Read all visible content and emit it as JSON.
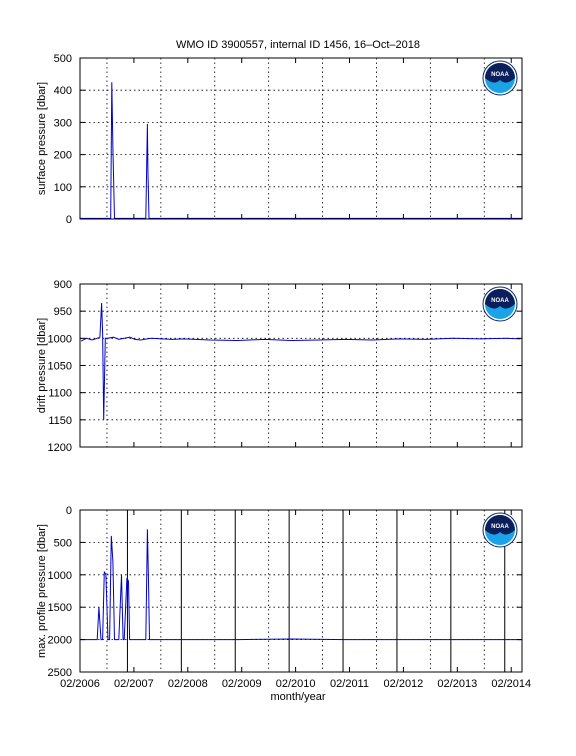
{
  "figure": {
    "title": "WMO ID 3900557, internal ID 1456, 16–Oct–2018",
    "xlabel": "month/year"
  },
  "colors": {
    "series": "#0000cc",
    "axes": "#000000",
    "grid": "#000000"
  },
  "logo": {
    "icon": "noaa-logo-icon",
    "text": "NOAA"
  },
  "chart_data": [
    {
      "type": "line",
      "ylabel": "surface pressure [dbar]",
      "ylim": [
        0,
        500
      ],
      "yticks": [
        0,
        100,
        200,
        300,
        400,
        500
      ],
      "yreversed": false,
      "xlim": [
        2006.08,
        2014.28
      ],
      "grid": true,
      "legend": "none",
      "series": [
        {
          "x": [
            2006.08,
            2006.6,
            2006.65,
            2006.67,
            2006.69,
            2006.72,
            2006.74,
            2007.2,
            2007.3,
            2007.33,
            2007.34,
            2007.36,
            2007.38,
            2014.28
          ],
          "y": [
            2,
            2,
            2,
            425,
            220,
            2,
            2,
            2,
            2,
            295,
            155,
            2,
            2,
            2
          ]
        }
      ]
    },
    {
      "type": "line",
      "ylabel": "drift pressure [dbar]",
      "ylim": [
        900,
        1200
      ],
      "yticks": [
        900,
        950,
        1000,
        1050,
        1100,
        1150,
        1200
      ],
      "yreversed": true,
      "xlim": [
        2006.08,
        2014.28
      ],
      "grid": true,
      "legend": "none",
      "series": [
        {
          "x": [
            2006.1,
            2006.2,
            2006.3,
            2006.4,
            2006.45,
            2006.48,
            2006.5,
            2006.52,
            2006.55,
            2006.6,
            2006.7,
            2006.8,
            2006.9,
            2007.0,
            2007.1,
            2007.2,
            2007.4,
            2007.6,
            2007.8,
            2008.0,
            2008.5,
            2009.0,
            2009.5,
            2010.0,
            2010.5,
            2011.0,
            2011.5,
            2012.0,
            2012.5,
            2013.0,
            2013.5,
            2014.0,
            2014.25
          ],
          "y": [
            1005,
            1000,
            1003,
            1000,
            998,
            935,
            990,
            1150,
            1000,
            1000,
            998,
            1002,
            1000,
            998,
            1002,
            1003,
            1000,
            1001,
            1002,
            1001,
            1003,
            1004,
            1002,
            1004,
            1003,
            1002,
            1003,
            1001,
            1002,
            1000,
            1001,
            1000,
            1001
          ]
        }
      ]
    },
    {
      "type": "line",
      "ylabel": "max. profile pressure [dbar]",
      "ylim": [
        0,
        2500
      ],
      "yticks": [
        0,
        500,
        1000,
        1500,
        2000,
        2500
      ],
      "yreversed": true,
      "xlim": [
        2006.08,
        2014.28
      ],
      "grid": true,
      "legend": "none",
      "series": [
        {
          "x": [
            2006.08,
            2006.4,
            2006.43,
            2006.47,
            2006.5,
            2006.53,
            2006.56,
            2006.6,
            2006.63,
            2006.66,
            2006.69,
            2006.72,
            2006.8,
            2006.85,
            2006.88,
            2006.9,
            2006.95,
            2006.98,
            2007.0,
            2007.03,
            2007.1,
            2007.3,
            2007.33,
            2007.35,
            2007.37,
            2007.4,
            2008.0,
            2009.0,
            2010.0,
            2011.0,
            2012.0,
            2013.0,
            2014.28
          ],
          "y": [
            2000,
            2000,
            1500,
            2000,
            2000,
            950,
            1000,
            2000,
            2000,
            400,
            800,
            2000,
            2000,
            1000,
            2000,
            2000,
            1050,
            1100,
            2000,
            2000,
            2000,
            2000,
            300,
            1100,
            2000,
            2000,
            2000,
            2000,
            1990,
            2000,
            2000,
            2000,
            2000
          ]
        }
      ],
      "vlines": [
        2006.96,
        2007.96,
        2008.96,
        2009.96,
        2010.96,
        2011.96,
        2012.96,
        2013.96
      ]
    }
  ],
  "xaxis": {
    "ticks": [
      {
        "value": 2006.08,
        "label": "02/2006"
      },
      {
        "value": 2007.08,
        "label": "02/2007"
      },
      {
        "value": 2008.08,
        "label": "02/2008"
      },
      {
        "value": 2009.08,
        "label": "02/2009"
      },
      {
        "value": 2010.08,
        "label": "02/2010"
      },
      {
        "value": 2011.08,
        "label": "02/2011"
      },
      {
        "value": 2012.08,
        "label": "02/2012"
      },
      {
        "value": 2013.08,
        "label": "02/2013"
      },
      {
        "value": 2014.08,
        "label": "02/2014"
      }
    ],
    "grid_values": [
      2006.58,
      2007.58,
      2008.58,
      2009.58,
      2010.58,
      2011.58,
      2012.58,
      2013.58
    ]
  }
}
